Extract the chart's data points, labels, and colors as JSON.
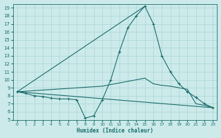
{
  "xlabel": "Humidex (Indice chaleur)",
  "bg_color": "#cceaea",
  "grid_color": "#aad4d4",
  "line_color": "#1a6b6b",
  "xlim": [
    -0.5,
    23.5
  ],
  "ylim": [
    5,
    19.5
  ],
  "yticks": [
    5,
    6,
    7,
    8,
    9,
    10,
    11,
    12,
    13,
    14,
    15,
    16,
    17,
    18,
    19
  ],
  "xticks": [
    0,
    1,
    2,
    3,
    4,
    5,
    6,
    7,
    8,
    9,
    10,
    11,
    12,
    13,
    14,
    15,
    16,
    17,
    18,
    19,
    20,
    21,
    22,
    23
  ],
  "series": [
    {
      "x": [
        0,
        1,
        2,
        3,
        4,
        5,
        6,
        7,
        8,
        9,
        10,
        11,
        12,
        13,
        14,
        15,
        16,
        17,
        18,
        19,
        20,
        21,
        22,
        23
      ],
      "y": [
        8.5,
        8.3,
        8.0,
        7.9,
        7.7,
        7.6,
        7.6,
        7.5,
        5.2,
        5.5,
        7.5,
        10.0,
        13.5,
        16.5,
        18.0,
        19.2,
        17.0,
        13.0,
        11.0,
        9.5,
        8.5,
        7.8,
        7.0,
        6.5
      ],
      "markers": true
    },
    {
      "x": [
        0,
        10,
        11,
        12,
        13,
        14,
        15,
        16,
        17,
        18,
        19,
        20,
        21,
        22,
        23
      ],
      "y": [
        8.5,
        9.2,
        9.4,
        9.6,
        9.8,
        10.0,
        10.2,
        9.5,
        9.3,
        9.2,
        9.0,
        8.8,
        7.0,
        6.8,
        6.5
      ],
      "markers": false
    },
    {
      "x": [
        0,
        23
      ],
      "y": [
        8.5,
        6.5
      ],
      "markers": false
    },
    {
      "x": [
        0,
        15
      ],
      "y": [
        8.5,
        19.2
      ],
      "markers": false
    }
  ]
}
